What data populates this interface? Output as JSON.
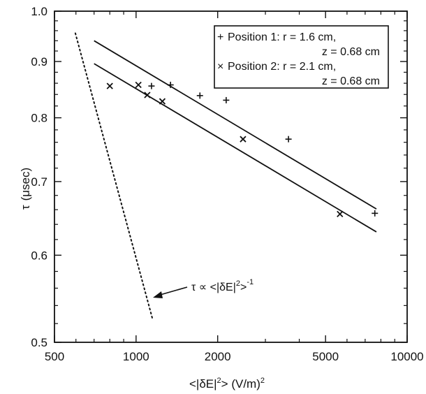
{
  "chart_data": {
    "type": "scatter",
    "title": "",
    "xlabel": "<|δE|2> (V/m)2",
    "ylabel": "τ (μsec)",
    "xscale": "log",
    "yscale": "log",
    "xlim": [
      500,
      10000
    ],
    "ylim": [
      0.5,
      1.0
    ],
    "xticks": [
      500,
      1000,
      2000,
      5000,
      10000
    ],
    "xtick_labels": [
      "500",
      "1000",
      "2000",
      "5000",
      "10000"
    ],
    "yticks": [
      0.5,
      0.6,
      0.7,
      0.8,
      0.9,
      1.0
    ],
    "ytick_labels": [
      "0.5",
      "0.6",
      "0.7",
      "0.8",
      "0.9",
      "1.0"
    ],
    "grid": false,
    "legend_position": "top-right",
    "series": [
      {
        "name": "Position 1: r = 1.6 cm, z = 0.68 cm",
        "marker": "plus",
        "x": [
          1140,
          1340,
          1720,
          2150,
          3650,
          7600
        ],
        "y": [
          0.855,
          0.857,
          0.838,
          0.83,
          0.765,
          0.655
        ],
        "fit": {
          "x": [
            700,
            7700
          ],
          "y": [
            0.94,
            0.661
          ]
        }
      },
      {
        "name": "Position 2: r = 2.1 cm, z = 0.68 cm",
        "marker": "cross",
        "x": [
          800,
          1020,
          1100,
          1250,
          2480,
          5650
        ],
        "y": [
          0.855,
          0.857,
          0.839,
          0.828,
          0.765,
          0.654
        ],
        "fit": {
          "x": [
            700,
            7700
          ],
          "y": [
            0.896,
            0.63
          ]
        }
      }
    ],
    "reference_line": {
      "style": "dotted",
      "x": [
        597,
        1150
      ],
      "y": [
        0.955,
        0.525
      ]
    },
    "annotation": {
      "text_main": "τ ∝ <|δE|",
      "sup1": "2",
      "text_mid": ">",
      "sup2": "-1",
      "arrow_to": [
        1150,
        0.555
      ]
    },
    "legend": {
      "entries": [
        {
          "symbol": "+",
          "line1": "Position 1: r = 1.6 cm,",
          "line2": "z = 0.68 cm"
        },
        {
          "symbol": "×",
          "line1": "Position 2: r = 2.1 cm,",
          "line2": "z = 0.68 cm"
        }
      ]
    },
    "axis_text": {
      "x_main": "<|δE|",
      "x_sup1": "2",
      "x_mid": "> (V/m)",
      "x_sup2": "2",
      "y_tau": "τ",
      "y_unit": "(μsec)"
    }
  }
}
